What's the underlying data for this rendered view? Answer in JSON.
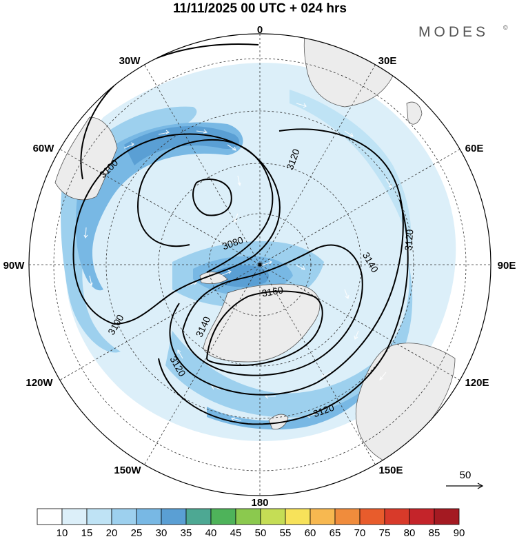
{
  "title": "11/11/2025  00 UTC  + 024 hrs",
  "logo": "MODES",
  "logo_mark": "©",
  "lon_labels": {
    "l0": "0",
    "l30e": "30E",
    "l60e": "60E",
    "l90e": "90E",
    "l120e": "120E",
    "l150e": "150E",
    "l180": "180",
    "l150w": "150W",
    "l120w": "120W",
    "l90w": "90W",
    "l60w": "60W",
    "l30w": "30W"
  },
  "contours": {
    "c3080": "3080",
    "c3100a": "3100",
    "c3100b": "3100",
    "c3120a": "3120",
    "c3120b": "3120",
    "c3120c": "3120",
    "c3120d": "3120",
    "c3140a": "3140",
    "c3140b": "3140",
    "c3160": "3160"
  },
  "vector_reference": "50",
  "colorbar": {
    "labels": [
      "10",
      "15",
      "20",
      "25",
      "30",
      "35",
      "40",
      "45",
      "50",
      "55",
      "60",
      "65",
      "70",
      "75",
      "80",
      "85",
      "90"
    ],
    "colors": [
      "#ffffff",
      "#dceff9",
      "#bfe3f5",
      "#9dd0ee",
      "#78b8e4",
      "#5a9fd4",
      "#4da893",
      "#4eb35a",
      "#8bc94e",
      "#c5dd55",
      "#f7e25a",
      "#f7b850",
      "#f08c3c",
      "#e85c2c",
      "#d83a2a",
      "#c4242a",
      "#a41a22"
    ]
  },
  "colors": {
    "land": "#ececec",
    "coast": "#555555",
    "contour": "#000000"
  }
}
